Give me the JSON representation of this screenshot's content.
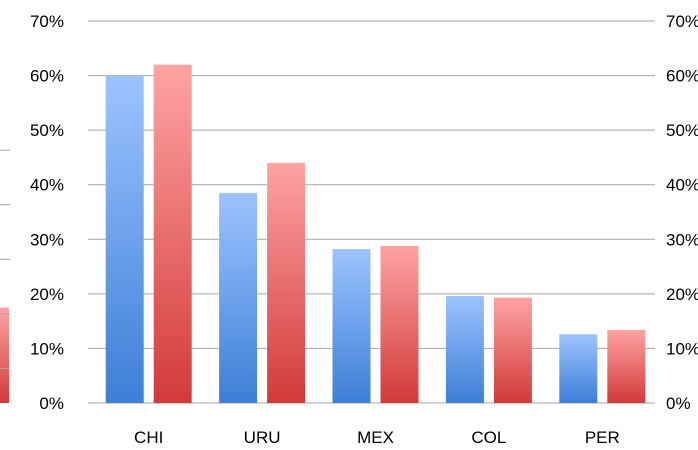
{
  "colors": {
    "series_a_top": "#9dc3ff",
    "series_a_bottom": "#3c7fd6",
    "series_b_top": "#ffa3a3",
    "series_b_bottom": "#d23a3a",
    "gridline": "#a6a6a6"
  },
  "chart_data": {
    "type": "bar",
    "title": "",
    "xlabel": "",
    "ylabel": "",
    "categories": [
      "CHI",
      "URU",
      "MEX",
      "COL",
      "PER"
    ],
    "series": [
      {
        "values": [
          60,
          38.5,
          28.2,
          19.6,
          12.6
        ]
      },
      {
        "values": [
          62,
          44,
          28.8,
          19.3,
          13.4
        ]
      }
    ],
    "ylim": [
      0,
      70
    ],
    "y_ticks": [
      "0%",
      "10%",
      "20%",
      "30%",
      "40%",
      "50%",
      "60%",
      "70%"
    ],
    "y_ticks_right": [
      "0%",
      "10%",
      "20%",
      "30%",
      "40%",
      "50%",
      "60%",
      "70%"
    ],
    "grid": true,
    "legend": "none"
  }
}
